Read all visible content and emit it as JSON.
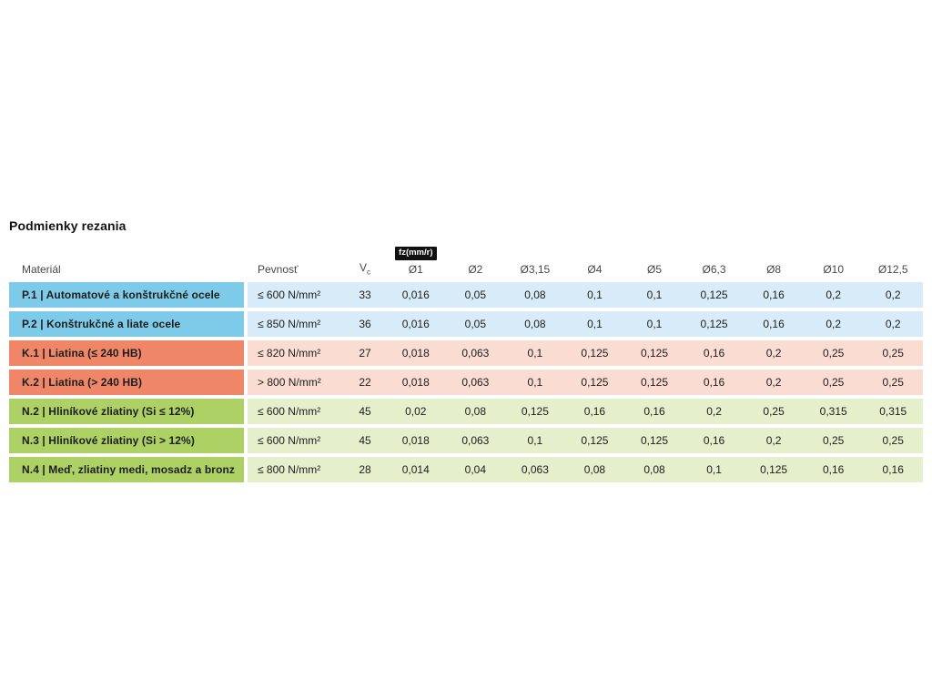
{
  "title": "Podmienky rezania",
  "table": {
    "badge": "fz(mm/r)",
    "headers": {
      "material": "Materiál",
      "strength": "Pevnosť",
      "vc_base": "V",
      "vc_sub": "c",
      "diameters": [
        "Ø1",
        "Ø2",
        "Ø3,15",
        "Ø4",
        "Ø5",
        "Ø6,3",
        "Ø8",
        "Ø10",
        "Ø12,5"
      ]
    },
    "rows": [
      {
        "group": "P",
        "material": "P.1 | Automatové a konštrukčné ocele",
        "strength": "≤ 600 N/mm²",
        "vc": "33",
        "values": [
          "0,016",
          "0,05",
          "0,08",
          "0,1",
          "0,1",
          "0,125",
          "0,16",
          "0,2",
          "0,2"
        ]
      },
      {
        "group": "P",
        "material": "P.2 | Konštrukčné a liate ocele",
        "strength": "≤ 850 N/mm²",
        "vc": "36",
        "values": [
          "0,016",
          "0,05",
          "0,08",
          "0,1",
          "0,1",
          "0,125",
          "0,16",
          "0,2",
          "0,2"
        ]
      },
      {
        "group": "K",
        "material": "K.1 | Liatina (≤ 240 HB)",
        "strength": "≤ 820 N/mm²",
        "vc": "27",
        "values": [
          "0,018",
          "0,063",
          "0,1",
          "0,125",
          "0,125",
          "0,16",
          "0,2",
          "0,25",
          "0,25"
        ]
      },
      {
        "group": "K",
        "material": "K.2 | Liatina (> 240 HB)",
        "strength": "> 800 N/mm²",
        "vc": "22",
        "values": [
          "0,018",
          "0,063",
          "0,1",
          "0,125",
          "0,125",
          "0,16",
          "0,2",
          "0,25",
          "0,25"
        ]
      },
      {
        "group": "N",
        "material": "N.2 | Hliníkové zliatiny (Si ≤ 12%)",
        "strength": "≤ 600 N/mm²",
        "vc": "45",
        "values": [
          "0,02",
          "0,08",
          "0,125",
          "0,16",
          "0,16",
          "0,2",
          "0,25",
          "0,315",
          "0,315"
        ]
      },
      {
        "group": "N",
        "material": "N.3 | Hliníkové zliatiny (Si > 12%)",
        "strength": "≤ 600 N/mm²",
        "vc": "45",
        "values": [
          "0,018",
          "0,063",
          "0,1",
          "0,125",
          "0,125",
          "0,16",
          "0,2",
          "0,25",
          "0,25"
        ]
      },
      {
        "group": "N",
        "material": "N.4 | Meď, zliatiny medi, mosadz a bronz",
        "strength": "≤ 800 N/mm²",
        "vc": "28",
        "values": [
          "0,014",
          "0,04",
          "0,063",
          "0,08",
          "0,08",
          "0,1",
          "0,125",
          "0,16",
          "0,16"
        ]
      }
    ],
    "colors": {
      "P": {
        "strong": "#7ecbe9",
        "light": "#d7ecf8"
      },
      "K": {
        "strong": "#ef8668",
        "light": "#fadcd2"
      },
      "N": {
        "strong": "#aed166",
        "light": "#e5efcc"
      },
      "badge_bg": "#111111",
      "badge_text": "#ffffff"
    }
  }
}
